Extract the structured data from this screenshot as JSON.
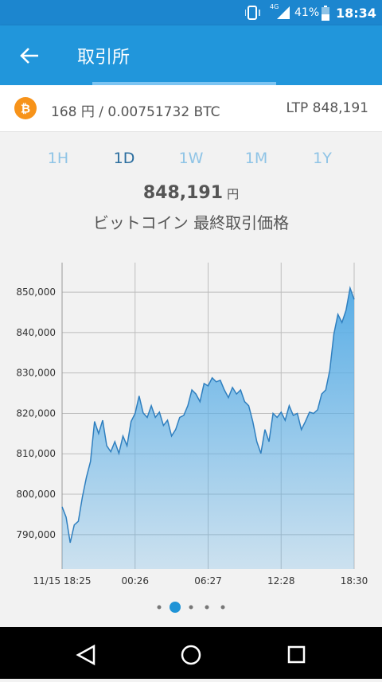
{
  "status_bar": {
    "network": "4G",
    "battery": "41%",
    "time": "18:34"
  },
  "app_bar": {
    "title": "取引所"
  },
  "summary": {
    "amount": "168 円 / 0.00751732 BTC",
    "ltp": "LTP 848,191"
  },
  "range_tabs": [
    "1H",
    "1D",
    "1W",
    "1M",
    "1Y"
  ],
  "selected_tab": "1D",
  "price": {
    "value": "848,191",
    "unit": "円",
    "caption": "ビットコイン 最終取引価格"
  },
  "chart_data": {
    "type": "area",
    "categories": [
      "11/15 18:25",
      null,
      null,
      null,
      null,
      null,
      null,
      null,
      null,
      null,
      null,
      null,
      null,
      null,
      null,
      null,
      null,
      null,
      "00:26",
      null,
      null,
      null,
      null,
      null,
      null,
      null,
      null,
      null,
      null,
      null,
      null,
      null,
      null,
      null,
      null,
      null,
      "06:27",
      null,
      null,
      null,
      null,
      null,
      null,
      null,
      null,
      null,
      null,
      null,
      null,
      null,
      null,
      null,
      null,
      null,
      "12:28",
      null,
      null,
      null,
      null,
      null,
      null,
      null,
      null,
      null,
      null,
      null,
      null,
      null,
      null,
      null,
      null,
      null,
      "18:30"
    ],
    "values": [
      796900,
      794300,
      788000,
      792400,
      793300,
      799300,
      804200,
      808100,
      818000,
      815000,
      818300,
      812000,
      810500,
      813000,
      810100,
      814400,
      812000,
      818000,
      820000,
      824300,
      820100,
      819000,
      821900,
      819000,
      820300,
      817000,
      818300,
      814400,
      816000,
      819000,
      819500,
      821900,
      825800,
      824800,
      822900,
      827400,
      826800,
      828800,
      827800,
      828200,
      825800,
      823900,
      826400,
      824800,
      825800,
      822900,
      821900,
      818000,
      813000,
      810100,
      816000,
      813000,
      820000,
      819000,
      820300,
      818300,
      821900,
      819500,
      820000,
      816000,
      818000,
      820300,
      820000,
      820900,
      824800,
      825800,
      830700,
      839600,
      844500,
      842500,
      845500,
      851000,
      848191
    ],
    "color": "#2f7fbf",
    "fill_color": "#5aaee6",
    "ylim": [
      781500,
      857300
    ],
    "yticks": [
      {
        "value": 790000,
        "label": "790,000"
      },
      {
        "value": 800000,
        "label": "800,000"
      },
      {
        "value": 810000,
        "label": "810,000"
      },
      {
        "value": 820000,
        "label": "820,000"
      },
      {
        "value": 830000,
        "label": "830,000"
      },
      {
        "value": 840000,
        "label": "840,000"
      },
      {
        "value": 850000,
        "label": "850,000"
      }
    ],
    "grid": true
  }
}
